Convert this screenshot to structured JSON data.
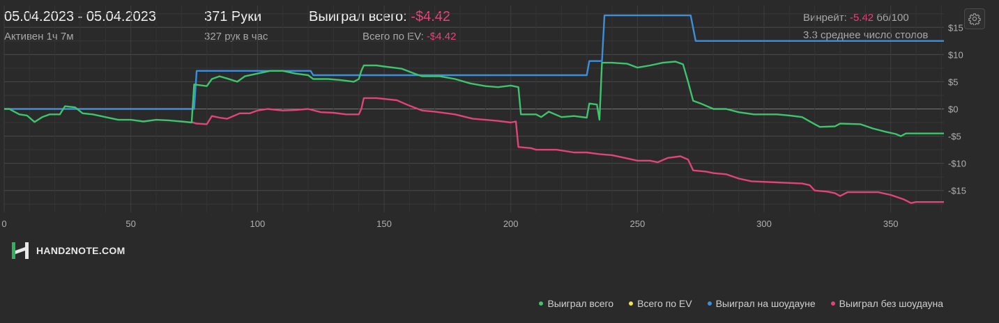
{
  "header": {
    "date_range": "05.04.2023 - 05.04.2023",
    "active_time": "Активен 1ч 7м",
    "hands": "371 Руки",
    "hands_per_hour": "327 рук в час",
    "won_total_label": "Выиграл всего:",
    "won_total_value": "-$4.42",
    "ev_total_label": "Всего по EV:",
    "ev_total_value": "-$4.42",
    "winrate_label": "Винрейт:",
    "winrate_value": "-5.42",
    "winrate_unit": "бб/100",
    "avg_tables": "3.3 среднее число столов"
  },
  "logo": {
    "text": "HAND2NOTE.COM",
    "icon": "hand2note-logo-icon"
  },
  "settings_icon": "gear-icon",
  "colors": {
    "background": "#2a2a2a",
    "won_total": "#3ec46d",
    "ev_total": "#f5e14a",
    "showdown": "#3d8fdd",
    "non_showdown": "#e04478",
    "negative_text": "#e8457a"
  },
  "chart_data": {
    "type": "line",
    "xlim": [
      0,
      371
    ],
    "ylim": [
      -19,
      19
    ],
    "x_ticks": [
      0,
      50,
      100,
      150,
      200,
      250,
      300,
      350
    ],
    "y_ticks": [
      15,
      10,
      5,
      0,
      -5,
      -10,
      -15
    ],
    "y_tick_labels": [
      "$15",
      "$10",
      "$5",
      "$0",
      "-$5",
      "-$10",
      "-$15"
    ],
    "grid": true,
    "legend_position": "bottom-right",
    "series": [
      {
        "name": "Выиграл всего",
        "color": "#3ec46d",
        "points": [
          [
            0,
            0
          ],
          [
            2,
            0
          ],
          [
            4,
            -0.5
          ],
          [
            6,
            -1
          ],
          [
            9,
            -1.2
          ],
          [
            12,
            -2.4
          ],
          [
            15,
            -1.5
          ],
          [
            18,
            -1
          ],
          [
            22,
            -1
          ],
          [
            24,
            0.5
          ],
          [
            28,
            0.3
          ],
          [
            31,
            -0.8
          ],
          [
            35,
            -1
          ],
          [
            40,
            -1.5
          ],
          [
            45,
            -2
          ],
          [
            50,
            -2
          ],
          [
            55,
            -2.3
          ],
          [
            60,
            -2
          ],
          [
            65,
            -2.1
          ],
          [
            70,
            -2.3
          ],
          [
            74,
            -2.5
          ],
          [
            75,
            4.5
          ],
          [
            80,
            4.2
          ],
          [
            82,
            5.5
          ],
          [
            85,
            6
          ],
          [
            88,
            5.6
          ],
          [
            92,
            5
          ],
          [
            95,
            6
          ],
          [
            100,
            6.5
          ],
          [
            105,
            7
          ],
          [
            110,
            7
          ],
          [
            115,
            6.5
          ],
          [
            120,
            6.2
          ],
          [
            122,
            5.5
          ],
          [
            128,
            5.5
          ],
          [
            133,
            5.3
          ],
          [
            138,
            5
          ],
          [
            140,
            5.5
          ],
          [
            141,
            7
          ],
          [
            142,
            8
          ],
          [
            147,
            8
          ],
          [
            150,
            7.8
          ],
          [
            157,
            7.4
          ],
          [
            162,
            6.5
          ],
          [
            165,
            6
          ],
          [
            172,
            6
          ],
          [
            178,
            5.5
          ],
          [
            184,
            4.7
          ],
          [
            190,
            4.2
          ],
          [
            195,
            4
          ],
          [
            200,
            4.3
          ],
          [
            203,
            4
          ],
          [
            204,
            -1
          ],
          [
            210,
            -1
          ],
          [
            212,
            -1.5
          ],
          [
            215,
            -0.5
          ],
          [
            220,
            -1.5
          ],
          [
            225,
            -1.3
          ],
          [
            230,
            -1.6
          ],
          [
            231,
            1
          ],
          [
            234,
            0.8
          ],
          [
            235,
            -2
          ],
          [
            236,
            8.5
          ],
          [
            240,
            8.5
          ],
          [
            246,
            8.3
          ],
          [
            250,
            7.6
          ],
          [
            255,
            8
          ],
          [
            260,
            8.5
          ],
          [
            265,
            8.7
          ],
          [
            268,
            8.2
          ],
          [
            270,
            5
          ],
          [
            272,
            1.5
          ],
          [
            275,
            1
          ],
          [
            280,
            0
          ],
          [
            285,
            0
          ],
          [
            290,
            -0.6
          ],
          [
            296,
            -1
          ],
          [
            305,
            -1
          ],
          [
            310,
            -1.2
          ],
          [
            315,
            -1.5
          ],
          [
            320,
            -2.8
          ],
          [
            322,
            -3.3
          ],
          [
            328,
            -3.2
          ],
          [
            330,
            -2.7
          ],
          [
            338,
            -2.8
          ],
          [
            343,
            -3.6
          ],
          [
            348,
            -4.2
          ],
          [
            352,
            -4.6
          ],
          [
            354,
            -5
          ],
          [
            356,
            -4.5
          ],
          [
            371,
            -4.5
          ]
        ]
      },
      {
        "name": "Всего по EV",
        "color": "#f5e14a",
        "points": []
      },
      {
        "name": "Выиграл на шоудауне",
        "color": "#3d8fdd",
        "points": [
          [
            0,
            0
          ],
          [
            75,
            0
          ],
          [
            76,
            7
          ],
          [
            121,
            7
          ],
          [
            122,
            6.2
          ],
          [
            230,
            6.2
          ],
          [
            231,
            8.8
          ],
          [
            236,
            8.8
          ],
          [
            237,
            17.2
          ],
          [
            271,
            17.2
          ],
          [
            273,
            12.5
          ],
          [
            371,
            12.5
          ]
        ]
      },
      {
        "name": "Выиграл без шоудауна",
        "color": "#e04478",
        "points": [
          [
            74,
            -2.4
          ],
          [
            76,
            -2.7
          ],
          [
            80,
            -2.8
          ],
          [
            82,
            -1.3
          ],
          [
            85,
            -1.6
          ],
          [
            88,
            -1.8
          ],
          [
            93,
            -0.8
          ],
          [
            97,
            -0.8
          ],
          [
            100,
            -0.3
          ],
          [
            104,
            0
          ],
          [
            110,
            -0.3
          ],
          [
            115,
            -0.2
          ],
          [
            120,
            0
          ],
          [
            125,
            -0.6
          ],
          [
            130,
            -0.7
          ],
          [
            135,
            -1
          ],
          [
            140,
            -1
          ],
          [
            141,
            0
          ],
          [
            142,
            2
          ],
          [
            147,
            2
          ],
          [
            155,
            1.6
          ],
          [
            160,
            0.6
          ],
          [
            165,
            -0.3
          ],
          [
            170,
            -0.5
          ],
          [
            178,
            -1
          ],
          [
            185,
            -1.8
          ],
          [
            190,
            -2
          ],
          [
            195,
            -2.2
          ],
          [
            200,
            -2.5
          ],
          [
            202,
            -2.3
          ],
          [
            203,
            -7
          ],
          [
            208,
            -7.2
          ],
          [
            210,
            -7.5
          ],
          [
            218,
            -7.5
          ],
          [
            225,
            -8
          ],
          [
            230,
            -8
          ],
          [
            235,
            -8.3
          ],
          [
            240,
            -8.5
          ],
          [
            245,
            -9
          ],
          [
            250,
            -9.5
          ],
          [
            255,
            -9.5
          ],
          [
            258,
            -9.8
          ],
          [
            262,
            -9
          ],
          [
            267,
            -8.7
          ],
          [
            270,
            -9.3
          ],
          [
            272,
            -11.3
          ],
          [
            277,
            -11.5
          ],
          [
            280,
            -11.8
          ],
          [
            285,
            -12
          ],
          [
            290,
            -12.8
          ],
          [
            295,
            -13.3
          ],
          [
            305,
            -13.5
          ],
          [
            315,
            -13.7
          ],
          [
            318,
            -14
          ],
          [
            320,
            -15
          ],
          [
            325,
            -15.2
          ],
          [
            328,
            -15.5
          ],
          [
            330,
            -16
          ],
          [
            333,
            -15.3
          ],
          [
            340,
            -15.3
          ],
          [
            345,
            -15.3
          ],
          [
            350,
            -15.8
          ],
          [
            355,
            -16.6
          ],
          [
            358,
            -17.3
          ],
          [
            360,
            -17.1
          ],
          [
            371,
            -17.1
          ]
        ]
      }
    ]
  }
}
